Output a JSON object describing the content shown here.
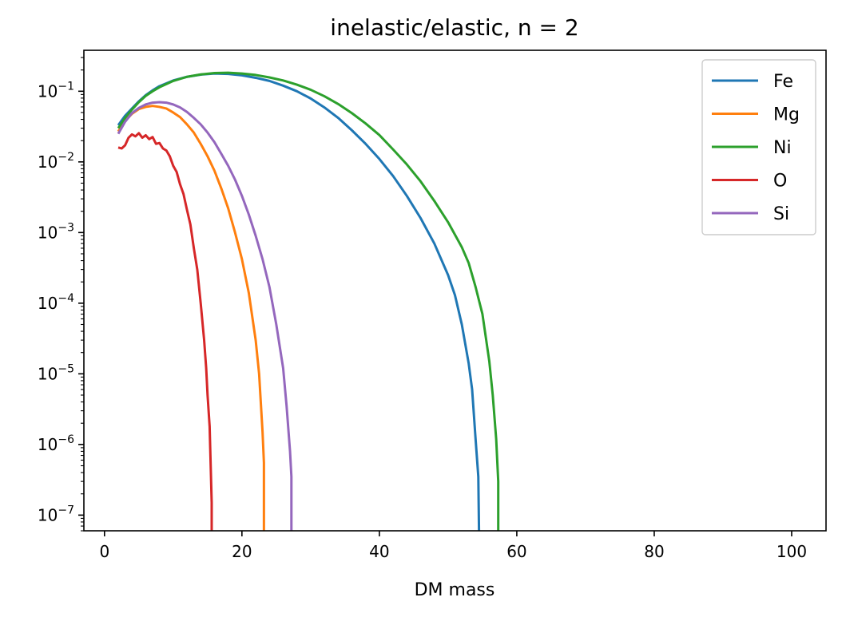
{
  "chart_data": {
    "type": "line",
    "title": "inelastic/elastic, n = 2",
    "xlabel": "DM mass",
    "ylabel": "",
    "xlim": [
      -3,
      105
    ],
    "ylim": [
      6e-08,
      0.38
    ],
    "yscale": "log",
    "grid": false,
    "legend_position": "top-right",
    "x_ticks": [
      {
        "value": 0,
        "label": "0"
      },
      {
        "value": 20,
        "label": "20"
      },
      {
        "value": 40,
        "label": "40"
      },
      {
        "value": 60,
        "label": "60"
      },
      {
        "value": 80,
        "label": "80"
      },
      {
        "value": 100,
        "label": "100"
      }
    ],
    "y_ticks": [
      {
        "value": 1e-07,
        "base": "10",
        "exp": "−7"
      },
      {
        "value": 1e-06,
        "base": "10",
        "exp": "−6"
      },
      {
        "value": 1e-05,
        "base": "10",
        "exp": "−5"
      },
      {
        "value": 0.0001,
        "base": "10",
        "exp": "−4"
      },
      {
        "value": 0.001,
        "base": "10",
        "exp": "−3"
      },
      {
        "value": 0.01,
        "base": "10",
        "exp": "−2"
      },
      {
        "value": 0.1,
        "base": "10",
        "exp": "−1"
      }
    ],
    "series": [
      {
        "name": "Fe",
        "color": "#1f77b4",
        "points": [
          [
            2,
            0.033
          ],
          [
            3,
            0.045
          ],
          [
            4,
            0.057
          ],
          [
            5,
            0.072
          ],
          [
            6,
            0.088
          ],
          [
            7,
            0.103
          ],
          [
            8,
            0.118
          ],
          [
            10,
            0.142
          ],
          [
            12,
            0.16
          ],
          [
            14,
            0.172
          ],
          [
            16,
            0.178
          ],
          [
            18,
            0.176
          ],
          [
            20,
            0.168
          ],
          [
            22,
            0.155
          ],
          [
            24,
            0.14
          ],
          [
            26,
            0.12
          ],
          [
            28,
            0.1
          ],
          [
            30,
            0.079
          ],
          [
            32,
            0.059
          ],
          [
            34,
            0.042
          ],
          [
            36,
            0.028
          ],
          [
            38,
            0.018
          ],
          [
            40,
            0.011
          ],
          [
            42,
            0.0063
          ],
          [
            44,
            0.0033
          ],
          [
            46,
            0.0016
          ],
          [
            48,
            0.0007
          ],
          [
            50,
            0.00025
          ],
          [
            51,
            0.00013
          ],
          [
            52,
            5e-05
          ],
          [
            53,
            1.4e-05
          ],
          [
            53.5,
            6e-06
          ],
          [
            54,
            1.2e-06
          ],
          [
            54.4,
            3.5e-07
          ],
          [
            54.5,
            6e-08
          ]
        ]
      },
      {
        "name": "Mg",
        "color": "#ff7f0e",
        "points": [
          [
            2,
            0.027
          ],
          [
            3,
            0.038
          ],
          [
            4,
            0.048
          ],
          [
            5,
            0.056
          ],
          [
            6,
            0.06
          ],
          [
            7,
            0.062
          ],
          [
            8,
            0.06
          ],
          [
            9,
            0.057
          ],
          [
            10,
            0.05
          ],
          [
            11,
            0.043
          ],
          [
            12,
            0.034
          ],
          [
            13,
            0.026
          ],
          [
            14,
            0.018
          ],
          [
            15,
            0.012
          ],
          [
            16,
            0.0075
          ],
          [
            17,
            0.0042
          ],
          [
            18,
            0.0022
          ],
          [
            19,
            0.001
          ],
          [
            20,
            0.00042
          ],
          [
            21,
            0.00014
          ],
          [
            22,
            3e-05
          ],
          [
            22.5,
            1e-05
          ],
          [
            23,
            1.5e-06
          ],
          [
            23.2,
            5.5e-07
          ],
          [
            23.2,
            6e-08
          ]
        ]
      },
      {
        "name": "Ni",
        "color": "#2ca02c",
        "points": [
          [
            2,
            0.03
          ],
          [
            3,
            0.042
          ],
          [
            4,
            0.055
          ],
          [
            5,
            0.07
          ],
          [
            6,
            0.086
          ],
          [
            7,
            0.1
          ],
          [
            8,
            0.114
          ],
          [
            10,
            0.14
          ],
          [
            12,
            0.16
          ],
          [
            14,
            0.173
          ],
          [
            16,
            0.181
          ],
          [
            18,
            0.183
          ],
          [
            20,
            0.178
          ],
          [
            22,
            0.17
          ],
          [
            24,
            0.157
          ],
          [
            26,
            0.142
          ],
          [
            28,
            0.124
          ],
          [
            30,
            0.105
          ],
          [
            32,
            0.085
          ],
          [
            34,
            0.066
          ],
          [
            36,
            0.049
          ],
          [
            38,
            0.035
          ],
          [
            40,
            0.024
          ],
          [
            42,
            0.015
          ],
          [
            44,
            0.0092
          ],
          [
            46,
            0.0053
          ],
          [
            48,
            0.0028
          ],
          [
            50,
            0.0014
          ],
          [
            52,
            0.00062
          ],
          [
            53,
            0.00037
          ],
          [
            54,
            0.00017
          ],
          [
            55,
            7e-05
          ],
          [
            56,
            1.5e-05
          ],
          [
            56.5,
            5e-06
          ],
          [
            57,
            1.2e-06
          ],
          [
            57.3,
            3e-07
          ],
          [
            57.3,
            6e-08
          ]
        ]
      },
      {
        "name": "O",
        "color": "#d62728",
        "points": [
          [
            2,
            0.016
          ],
          [
            2.5,
            0.0155
          ],
          [
            3,
            0.0172
          ],
          [
            3.5,
            0.022
          ],
          [
            4,
            0.0245
          ],
          [
            4.5,
            0.023
          ],
          [
            5,
            0.0255
          ],
          [
            5.5,
            0.022
          ],
          [
            6,
            0.0238
          ],
          [
            6.5,
            0.021
          ],
          [
            7,
            0.0225
          ],
          [
            7.5,
            0.018
          ],
          [
            8,
            0.0185
          ],
          [
            8.5,
            0.0155
          ],
          [
            9,
            0.0145
          ],
          [
            9.5,
            0.012
          ],
          [
            10,
            0.0088
          ],
          [
            10.5,
            0.0072
          ],
          [
            11,
            0.0048
          ],
          [
            11.5,
            0.0035
          ],
          [
            12,
            0.0021
          ],
          [
            12.5,
            0.0013
          ],
          [
            13,
            0.0006
          ],
          [
            13.5,
            0.0003
          ],
          [
            14,
            0.0001
          ],
          [
            14.5,
            3e-05
          ],
          [
            14.8,
            1.2e-05
          ],
          [
            15,
            5e-06
          ],
          [
            15.3,
            1.8e-06
          ],
          [
            15.6,
            1.5e-07
          ],
          [
            15.6,
            6e-08
          ]
        ]
      },
      {
        "name": "Si",
        "color": "#9467bd",
        "points": [
          [
            2,
            0.025
          ],
          [
            3,
            0.037
          ],
          [
            4,
            0.049
          ],
          [
            5,
            0.058
          ],
          [
            6,
            0.065
          ],
          [
            7,
            0.069
          ],
          [
            8,
            0.07
          ],
          [
            9,
            0.069
          ],
          [
            10,
            0.065
          ],
          [
            11,
            0.059
          ],
          [
            12,
            0.051
          ],
          [
            13,
            0.042
          ],
          [
            14,
            0.034
          ],
          [
            15,
            0.026
          ],
          [
            16,
            0.019
          ],
          [
            17,
            0.013
          ],
          [
            18,
            0.0088
          ],
          [
            19,
            0.0056
          ],
          [
            20,
            0.0033
          ],
          [
            21,
            0.0018
          ],
          [
            22,
            0.0009
          ],
          [
            23,
            0.00042
          ],
          [
            24,
            0.00017
          ],
          [
            25,
            5e-05
          ],
          [
            26,
            1.2e-05
          ],
          [
            26.5,
            3.5e-06
          ],
          [
            27,
            8e-07
          ],
          [
            27.2,
            3.5e-07
          ],
          [
            27.2,
            6e-08
          ]
        ]
      }
    ]
  }
}
